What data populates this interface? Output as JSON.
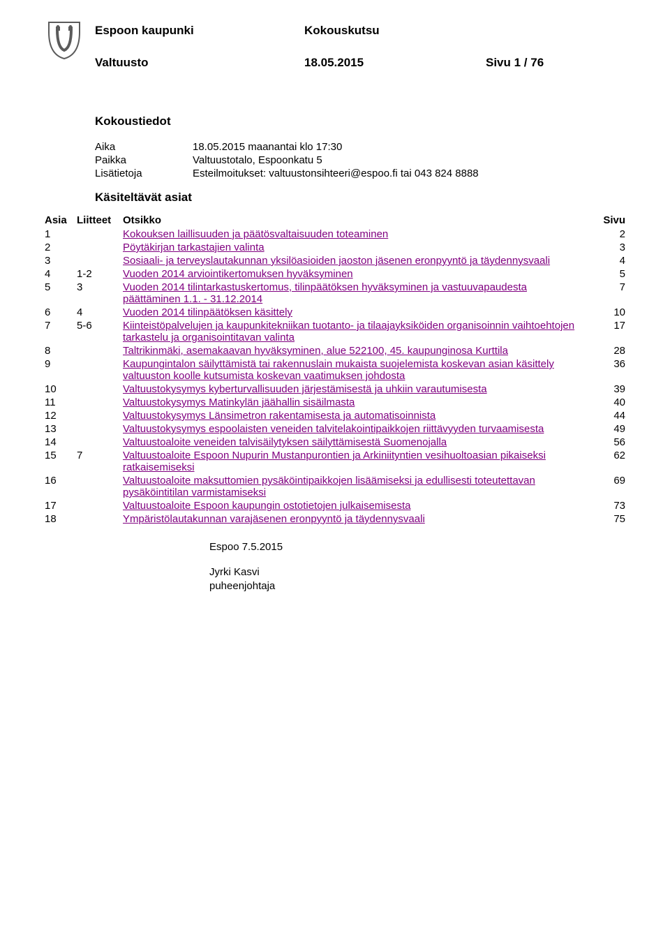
{
  "header": {
    "org": "Espoon kaupunki",
    "docType": "Kokouskutsu",
    "body": "Valtuusto",
    "date": "18.05.2015",
    "pageInfo": "Sivu 1 / 76"
  },
  "logo": {
    "strokeColor": "#5b5b5b",
    "fillColor": "#ffffff"
  },
  "meetingInfoTitle": "Kokoustiedot",
  "meetingInfo": {
    "timeLabel": "Aika",
    "time": "18.05.2015 maanantai klo 17:30",
    "placeLabel": "Paikka",
    "place": "Valtuustotalo, Espoonkatu 5",
    "extraLabel": "Lisätietoja",
    "extra": "Esteilmoitukset: valtuustonsihteeri@espoo.fi tai 043 824 8888"
  },
  "handledTitle": "Käsiteltävät asiat",
  "columns": {
    "num": "Asia",
    "att": "Liitteet",
    "title": "Otsikko",
    "page": "Sivu"
  },
  "linkColor": "#800080",
  "items": [
    {
      "num": "1",
      "att": "",
      "title": "Kokouksen laillisuuden ja päätösvaltaisuuden toteaminen",
      "page": "2",
      "link": true
    },
    {
      "num": "2",
      "att": "",
      "title": "Pöytäkirjan tarkastajien valinta",
      "page": "3",
      "link": true
    },
    {
      "num": "3",
      "att": "",
      "title": "Sosiaali- ja terveyslautakunnan yksilöasioiden jaoston jäsenen eronpyyntö ja täydennysvaali",
      "page": "4",
      "link": true
    },
    {
      "num": "4",
      "att": "1-2",
      "title": "Vuoden 2014 arviointikertomuksen hyväksyminen",
      "page": "5",
      "link": true
    },
    {
      "num": "5",
      "att": "3",
      "title": "Vuoden 2014 tilintarkastuskertomus, tilinpäätöksen hyväksyminen ja vastuuvapaudesta päättäminen 1.1. - 31.12.2014",
      "page": "7",
      "link": true
    },
    {
      "num": "6",
      "att": "4",
      "title": "Vuoden 2014 tilinpäätöksen käsittely",
      "page": "10",
      "link": true
    },
    {
      "num": "7",
      "att": "5-6",
      "title": "Kiinteistöpalvelujen ja kaupunkitekniikan tuotanto- ja tilaajayksiköiden organisoinnin vaihtoehtojen tarkastelu ja organisointitavan valinta",
      "page": "17",
      "link": true
    },
    {
      "num": "8",
      "att": "",
      "title": "Taltrikinmäki, asemakaavan hyväksyminen, alue 522100, 45. kaupunginosa Kurttila",
      "page": "28",
      "link": true
    },
    {
      "num": "9",
      "att": "",
      "title": "Kaupungintalon säilyttämistä tai rakennuslain mukaista suojelemista koskevan asian käsittely valtuuston koolle kutsumista koskevan vaatimuksen johdosta",
      "page": "36",
      "link": true
    },
    {
      "num": "10",
      "att": "",
      "title": "Valtuustokysymys kyberturvallisuuden järjestämisestä ja uhkiin varautumisesta",
      "page": "39",
      "link": true
    },
    {
      "num": "11",
      "att": "",
      "title": "Valtuustokysymys Matinkylän jäähallin sisäilmasta",
      "page": "40",
      "link": true
    },
    {
      "num": "12",
      "att": "",
      "title": "Valtuustokysymys Länsimetron rakentamisesta ja automatisoinnista",
      "page": "44",
      "link": true
    },
    {
      "num": "13",
      "att": "",
      "title": "Valtuustokysymys espoolaisten veneiden talvitelakointipaikkojen riittävyyden turvaamisesta",
      "page": "49",
      "link": true
    },
    {
      "num": "14",
      "att": "",
      "title": "Valtuustoaloite veneiden talvisäilytyksen säilyttämisestä Suomenojalla",
      "page": "56",
      "link": true
    },
    {
      "num": "15",
      "att": "7",
      "title": "Valtuustoaloite Espoon Nupurin Mustanpurontien ja Arkiniityntien vesihuoltoasian pikaiseksi ratkaisemiseksi",
      "page": "62",
      "link": true
    },
    {
      "num": "16",
      "att": "",
      "title": "Valtuustoaloite maksuttomien pysäköintipaikkojen lisäämiseksi ja edullisesti toteutettavan pysäköintitilan varmistamiseksi",
      "page": "69",
      "link": true
    },
    {
      "num": "17",
      "att": "",
      "title": "Valtuustoaloite Espoon kaupungin ostotietojen julkaisemisesta",
      "page": "73",
      "link": true
    },
    {
      "num": "18",
      "att": "",
      "title": "Ympäristölautakunnan varajäsenen eronpyyntö ja täydennysvaali",
      "page": "75",
      "link": true
    }
  ],
  "footer": {
    "placeDate": "Espoo 7.5.2015",
    "signerName": "Jyrki Kasvi",
    "signerTitle": "puheenjohtaja"
  }
}
